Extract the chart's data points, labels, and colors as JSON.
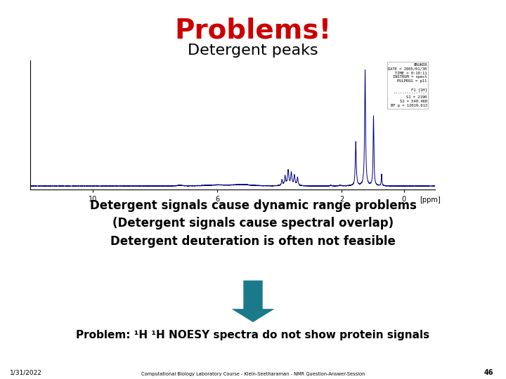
{
  "title": "Problems!",
  "title_color": "#cc0000",
  "subtitle": "Detergent peaks",
  "subtitle_color": "#000000",
  "body_lines": [
    "Detergent signals cause dynamic range problems",
    "(Detergent signals cause spectral overlap)",
    "Detergent deuteration is often not feasible"
  ],
  "body_fontsize": 12,
  "bottom_left_text": "1/31/2022",
  "bottom_center_text": "Computational Biology Laboratory Course - Klein-Seetharaman - NMR Question-Answer-Session",
  "bottom_right_text": "46",
  "arrow_color": "#1a7a8a",
  "bottom_text": "Problem: ¹H ¹H NOESY spectra do not show protein signals",
  "background_color": "#ffffff",
  "nmr_color": "#000080",
  "info_text": "BRUKER\nDATE = 2005/01/30\nTIME = 0:10:11\nINSTRUM = spect\nPULPROG = p11\n\nF1 [1H]\n---------------\nS1 = 2190\nS2 = 540.460\nBF p = 12019.613"
}
